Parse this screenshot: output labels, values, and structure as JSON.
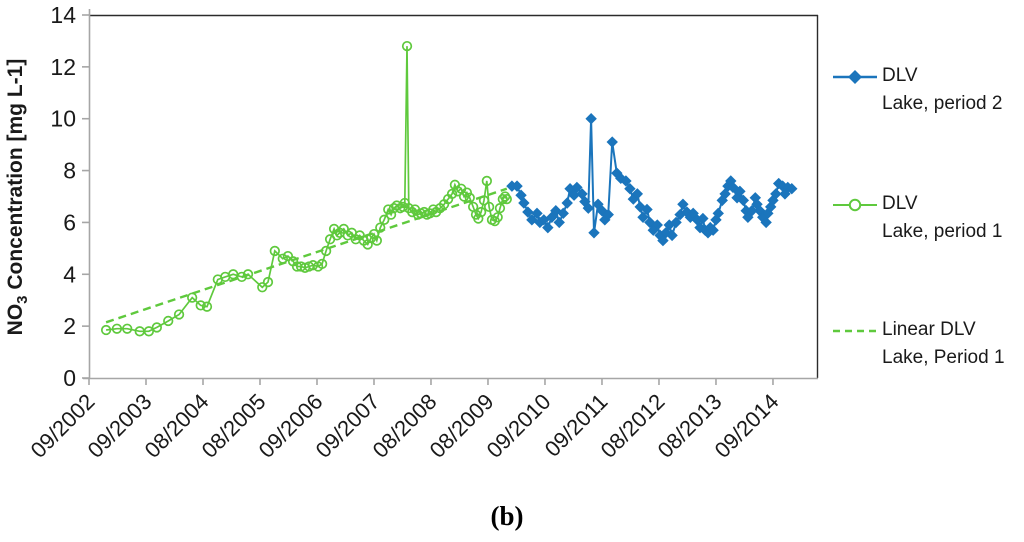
{
  "figure": {
    "caption": "(b)"
  },
  "chart_data": {
    "type": "line",
    "title": "",
    "ylabel_parts": {
      "prefix": "NO",
      "sub": "3",
      "suffix": " Concentration [mg L-1]"
    },
    "ylabel_plain": "NO3 Concentration [mg L-1]",
    "xlabel": "",
    "ylim": [
      0,
      14
    ],
    "y_ticks": [
      0,
      2,
      4,
      6,
      8,
      10,
      12,
      14
    ],
    "x_tick_labels": [
      "09/2002",
      "09/2003",
      "08/2004",
      "08/2005",
      "09/2006",
      "09/2007",
      "08/2008",
      "08/2009",
      "09/2010",
      "09/2011",
      "08/2012",
      "08/2013",
      "09/2014"
    ],
    "x_range_years": [
      2002.7,
      2015.49
    ],
    "years_per_tick": 1,
    "grid": false,
    "legend_position": "right",
    "text_color": "#1a1a1a",
    "axis_color": "#a6a6a6",
    "border_color": "#2b2b2b",
    "series": [
      {
        "name": "DLV Lake, period 2",
        "legend_lines": [
          "DLV",
          "Lake, period 2"
        ],
        "marker": "diamond",
        "line_style": "solid",
        "color": "#1b75bc",
        "points": [
          [
            2010.12,
            7.4
          ],
          [
            2010.21,
            7.4
          ],
          [
            2010.28,
            7.05
          ],
          [
            2010.33,
            6.75
          ],
          [
            2010.4,
            6.4
          ],
          [
            2010.47,
            6.1
          ],
          [
            2010.56,
            6.35
          ],
          [
            2010.61,
            6.0
          ],
          [
            2010.68,
            6.1
          ],
          [
            2010.75,
            5.8
          ],
          [
            2010.82,
            6.2
          ],
          [
            2010.89,
            6.45
          ],
          [
            2010.95,
            6.0
          ],
          [
            2011.02,
            6.35
          ],
          [
            2011.09,
            6.75
          ],
          [
            2011.14,
            7.3
          ],
          [
            2011.21,
            7.05
          ],
          [
            2011.26,
            7.35
          ],
          [
            2011.35,
            7.1
          ],
          [
            2011.4,
            6.8
          ],
          [
            2011.46,
            6.55
          ],
          [
            2011.51,
            10.0
          ],
          [
            2011.56,
            5.6
          ],
          [
            2011.63,
            6.7
          ],
          [
            2011.7,
            6.45
          ],
          [
            2011.75,
            6.1
          ],
          [
            2011.81,
            6.3
          ],
          [
            2011.88,
            9.1
          ],
          [
            2011.96,
            7.9
          ],
          [
            2012.03,
            7.7
          ],
          [
            2012.12,
            7.6
          ],
          [
            2012.19,
            7.3
          ],
          [
            2012.25,
            6.9
          ],
          [
            2012.32,
            7.1
          ],
          [
            2012.37,
            6.6
          ],
          [
            2012.42,
            6.2
          ],
          [
            2012.49,
            6.5
          ],
          [
            2012.54,
            6.0
          ],
          [
            2012.6,
            5.7
          ],
          [
            2012.67,
            5.9
          ],
          [
            2012.72,
            5.5
          ],
          [
            2012.77,
            5.3
          ],
          [
            2012.82,
            5.6
          ],
          [
            2012.88,
            5.9
          ],
          [
            2012.93,
            5.5
          ],
          [
            2013.0,
            6.0
          ],
          [
            2013.07,
            6.3
          ],
          [
            2013.12,
            6.7
          ],
          [
            2013.19,
            6.4
          ],
          [
            2013.25,
            6.2
          ],
          [
            2013.3,
            6.35
          ],
          [
            2013.37,
            6.1
          ],
          [
            2013.42,
            5.8
          ],
          [
            2013.47,
            6.15
          ],
          [
            2013.51,
            5.7
          ],
          [
            2013.56,
            5.6
          ],
          [
            2013.6,
            5.8
          ],
          [
            2013.65,
            5.7
          ],
          [
            2013.7,
            6.1
          ],
          [
            2013.74,
            6.35
          ],
          [
            2013.81,
            6.85
          ],
          [
            2013.86,
            7.1
          ],
          [
            2013.91,
            7.4
          ],
          [
            2013.96,
            7.6
          ],
          [
            2014.0,
            7.35
          ],
          [
            2014.07,
            6.95
          ],
          [
            2014.12,
            7.2
          ],
          [
            2014.18,
            6.85
          ],
          [
            2014.23,
            6.45
          ],
          [
            2014.26,
            6.2
          ],
          [
            2014.33,
            6.45
          ],
          [
            2014.39,
            6.95
          ],
          [
            2014.42,
            6.7
          ],
          [
            2014.47,
            6.45
          ],
          [
            2014.52,
            6.2
          ],
          [
            2014.58,
            6.0
          ],
          [
            2014.61,
            6.35
          ],
          [
            2014.66,
            6.6
          ],
          [
            2014.7,
            6.85
          ],
          [
            2014.75,
            7.1
          ],
          [
            2014.8,
            7.5
          ],
          [
            2014.87,
            7.4
          ],
          [
            2014.91,
            7.1
          ],
          [
            2014.96,
            7.35
          ],
          [
            2015.03,
            7.3
          ]
        ]
      },
      {
        "name": "DLV Lake, period 1",
        "legend_lines": [
          "DLV",
          "Lake, period 1"
        ],
        "marker": "open-circle",
        "line_style": "solid",
        "color": "#5fc93d",
        "points": [
          [
            2003.0,
            1.85
          ],
          [
            2003.19,
            1.9
          ],
          [
            2003.37,
            1.9
          ],
          [
            2003.59,
            1.8
          ],
          [
            2003.75,
            1.8
          ],
          [
            2003.89,
            1.95
          ],
          [
            2004.09,
            2.2
          ],
          [
            2004.28,
            2.45
          ],
          [
            2004.51,
            3.1
          ],
          [
            2004.66,
            2.8
          ],
          [
            2004.77,
            2.75
          ],
          [
            2004.96,
            3.8
          ],
          [
            2005.09,
            3.9
          ],
          [
            2005.23,
            4.0
          ],
          [
            2005.38,
            3.9
          ],
          [
            2005.49,
            4.0
          ],
          [
            2005.74,
            3.5
          ],
          [
            2005.84,
            3.7
          ],
          [
            2005.96,
            4.9
          ],
          [
            2006.1,
            4.6
          ],
          [
            2006.19,
            4.7
          ],
          [
            2006.28,
            4.5
          ],
          [
            2006.35,
            4.3
          ],
          [
            2006.42,
            4.3
          ],
          [
            2006.49,
            4.25
          ],
          [
            2006.56,
            4.3
          ],
          [
            2006.63,
            4.35
          ],
          [
            2006.72,
            4.3
          ],
          [
            2006.79,
            4.4
          ],
          [
            2006.86,
            4.9
          ],
          [
            2006.93,
            5.35
          ],
          [
            2007.0,
            5.75
          ],
          [
            2007.05,
            5.5
          ],
          [
            2007.1,
            5.6
          ],
          [
            2007.17,
            5.75
          ],
          [
            2007.24,
            5.5
          ],
          [
            2007.31,
            5.6
          ],
          [
            2007.38,
            5.35
          ],
          [
            2007.45,
            5.5
          ],
          [
            2007.52,
            5.3
          ],
          [
            2007.59,
            5.15
          ],
          [
            2007.65,
            5.4
          ],
          [
            2007.7,
            5.55
          ],
          [
            2007.75,
            5.3
          ],
          [
            2007.81,
            5.8
          ],
          [
            2007.88,
            6.1
          ],
          [
            2007.95,
            6.5
          ],
          [
            2008.0,
            6.3
          ],
          [
            2008.05,
            6.55
          ],
          [
            2008.1,
            6.65
          ],
          [
            2008.16,
            6.55
          ],
          [
            2008.21,
            6.6
          ],
          [
            2008.24,
            6.75
          ],
          [
            2008.28,
            12.8
          ],
          [
            2008.31,
            6.55
          ],
          [
            2008.37,
            6.4
          ],
          [
            2008.42,
            6.5
          ],
          [
            2008.47,
            6.3
          ],
          [
            2008.52,
            6.35
          ],
          [
            2008.58,
            6.4
          ],
          [
            2008.63,
            6.3
          ],
          [
            2008.68,
            6.35
          ],
          [
            2008.74,
            6.5
          ],
          [
            2008.79,
            6.4
          ],
          [
            2008.86,
            6.55
          ],
          [
            2008.93,
            6.7
          ],
          [
            2009.0,
            6.9
          ],
          [
            2009.07,
            7.1
          ],
          [
            2009.12,
            7.45
          ],
          [
            2009.17,
            7.2
          ],
          [
            2009.23,
            7.3
          ],
          [
            2009.28,
            7.0
          ],
          [
            2009.33,
            7.15
          ],
          [
            2009.38,
            6.95
          ],
          [
            2009.44,
            6.6
          ],
          [
            2009.49,
            6.3
          ],
          [
            2009.53,
            6.15
          ],
          [
            2009.58,
            6.4
          ],
          [
            2009.63,
            6.85
          ],
          [
            2009.68,
            7.6
          ],
          [
            2009.72,
            6.6
          ],
          [
            2009.77,
            6.1
          ],
          [
            2009.82,
            6.05
          ],
          [
            2009.87,
            6.2
          ],
          [
            2009.91,
            6.55
          ],
          [
            2009.96,
            6.9
          ],
          [
            2010.0,
            7.0
          ],
          [
            2010.03,
            6.9
          ]
        ]
      },
      {
        "name": "Linear DLV Lake, Period 1",
        "legend_lines": [
          "Linear DLV",
          "Lake, Period 1"
        ],
        "marker": "none",
        "line_style": "dashed",
        "color": "#5fc93d",
        "points": [
          [
            2003.0,
            2.15
          ],
          [
            2010.03,
            7.3
          ]
        ]
      }
    ]
  }
}
